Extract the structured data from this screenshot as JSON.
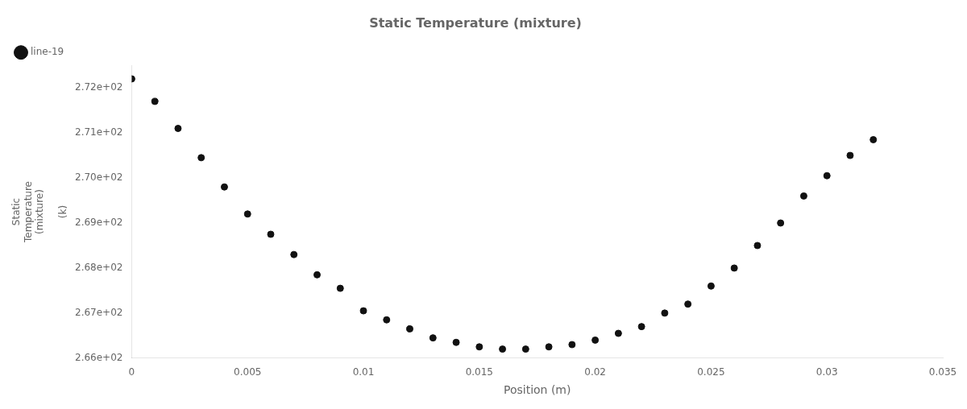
{
  "chart_data": {
    "type": "scatter",
    "title": "Static Temperature (mixture)",
    "xlabel": "Position (m)",
    "ylabel": "Static\nTemperature\n(mixture)\n\n(k)",
    "x": [
      0.0,
      0.001,
      0.002,
      0.003,
      0.004,
      0.005,
      0.006,
      0.007,
      0.008,
      0.009,
      0.01,
      0.011,
      0.012,
      0.013,
      0.014,
      0.015,
      0.016,
      0.017,
      0.018,
      0.019,
      0.02,
      0.021,
      0.022,
      0.023,
      0.024,
      0.025,
      0.026,
      0.027,
      0.028,
      0.029,
      0.03,
      0.031,
      0.032
    ],
    "series": [
      {
        "name": "line-19",
        "color": "#111111",
        "marker": "circle",
        "values": [
          272.2,
          271.7,
          271.1,
          270.45,
          269.8,
          269.2,
          268.75,
          268.3,
          267.85,
          267.55,
          267.05,
          266.85,
          266.65,
          266.45,
          266.35,
          266.25,
          266.2,
          266.2,
          266.25,
          266.3,
          266.4,
          266.55,
          266.7,
          267.0,
          267.2,
          267.6,
          268.0,
          268.5,
          269.0,
          269.6,
          270.05,
          270.5,
          270.85
        ]
      }
    ],
    "xlim": [
      0,
      0.035
    ],
    "ylim": [
      266.0,
      272.5
    ],
    "xticks": [
      0,
      0.005,
      0.01,
      0.015,
      0.02,
      0.025,
      0.03,
      0.035
    ],
    "yticks": [
      {
        "value": 266.0,
        "label": "2.66e+02"
      },
      {
        "value": 267.0,
        "label": "2.67e+02"
      },
      {
        "value": 268.0,
        "label": "2.68e+02"
      },
      {
        "value": 269.0,
        "label": "2.69e+02"
      },
      {
        "value": 270.0,
        "label": "2.70e+02"
      },
      {
        "value": 271.0,
        "label": "2.71e+02"
      },
      {
        "value": 272.0,
        "label": "2.72e+02"
      }
    ],
    "grid": false,
    "legend": "top-left"
  }
}
